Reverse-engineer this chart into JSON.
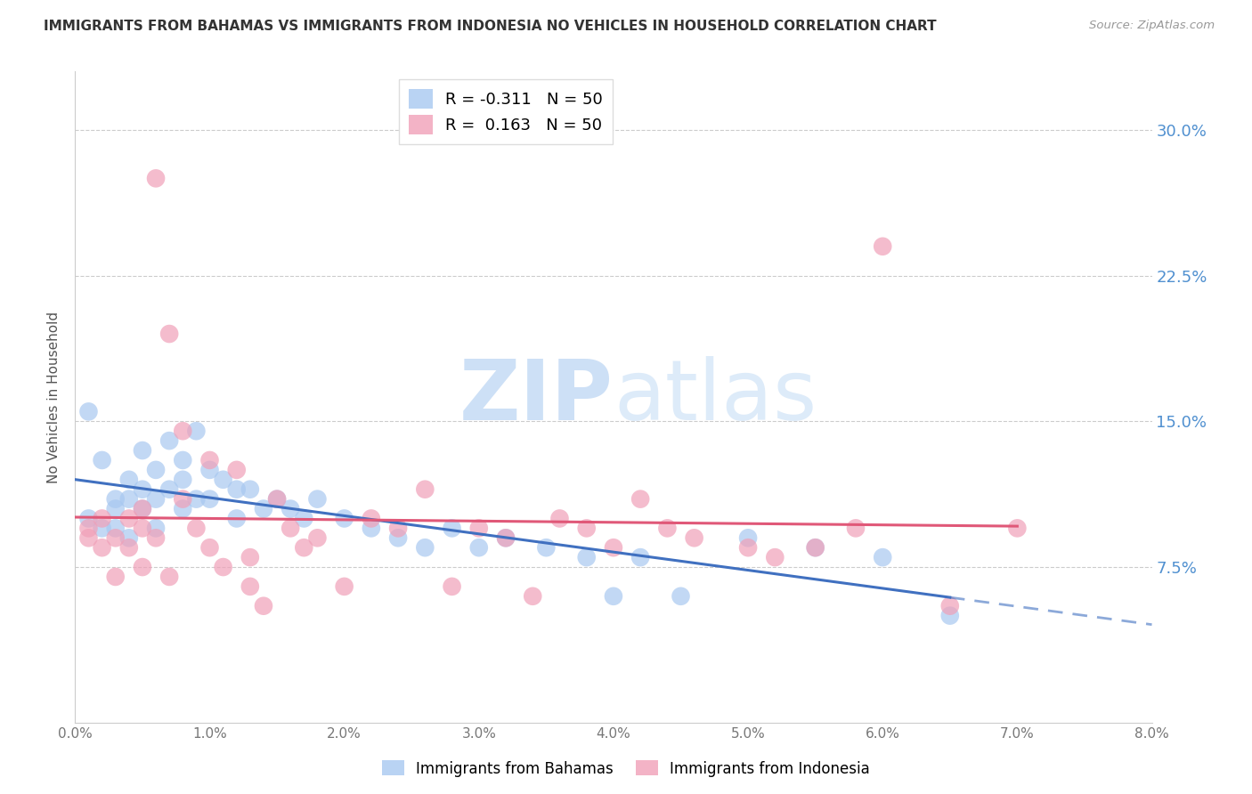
{
  "title": "IMMIGRANTS FROM BAHAMAS VS IMMIGRANTS FROM INDONESIA NO VEHICLES IN HOUSEHOLD CORRELATION CHART",
  "source": "Source: ZipAtlas.com",
  "ylabel": "No Vehicles in Household",
  "ytick_labels": [
    "7.5%",
    "15.0%",
    "22.5%",
    "30.0%"
  ],
  "ytick_values": [
    0.075,
    0.15,
    0.225,
    0.3
  ],
  "xlim": [
    0.0,
    0.08
  ],
  "ylim": [
    -0.005,
    0.33
  ],
  "legend_r_bahamas": "R = -0.311",
  "legend_n_bahamas": "N = 50",
  "legend_r_indonesia": "R =  0.163",
  "legend_n_indonesia": "N = 50",
  "color_bahamas": "#a8c8f0",
  "color_indonesia": "#f0a0b8",
  "line_color_bahamas": "#4070c0",
  "line_color_indonesia": "#e05878",
  "watermark_zip": "ZIP",
  "watermark_atlas": "atlas",
  "bahamas_x": [
    0.001,
    0.001,
    0.002,
    0.002,
    0.003,
    0.003,
    0.003,
    0.004,
    0.004,
    0.004,
    0.005,
    0.005,
    0.005,
    0.006,
    0.006,
    0.006,
    0.007,
    0.007,
    0.008,
    0.008,
    0.008,
    0.009,
    0.009,
    0.01,
    0.01,
    0.011,
    0.012,
    0.012,
    0.013,
    0.014,
    0.015,
    0.016,
    0.017,
    0.018,
    0.02,
    0.022,
    0.024,
    0.026,
    0.028,
    0.03,
    0.032,
    0.035,
    0.038,
    0.04,
    0.042,
    0.045,
    0.05,
    0.055,
    0.06,
    0.065
  ],
  "bahamas_y": [
    0.155,
    0.1,
    0.13,
    0.095,
    0.11,
    0.105,
    0.095,
    0.12,
    0.11,
    0.09,
    0.135,
    0.115,
    0.105,
    0.125,
    0.11,
    0.095,
    0.14,
    0.115,
    0.13,
    0.12,
    0.105,
    0.145,
    0.11,
    0.125,
    0.11,
    0.12,
    0.115,
    0.1,
    0.115,
    0.105,
    0.11,
    0.105,
    0.1,
    0.11,
    0.1,
    0.095,
    0.09,
    0.085,
    0.095,
    0.085,
    0.09,
    0.085,
    0.08,
    0.06,
    0.08,
    0.06,
    0.09,
    0.085,
    0.08,
    0.05
  ],
  "indonesia_x": [
    0.001,
    0.001,
    0.002,
    0.002,
    0.003,
    0.003,
    0.004,
    0.004,
    0.005,
    0.005,
    0.005,
    0.006,
    0.006,
    0.007,
    0.007,
    0.008,
    0.008,
    0.009,
    0.01,
    0.01,
    0.011,
    0.012,
    0.013,
    0.013,
    0.014,
    0.015,
    0.016,
    0.017,
    0.018,
    0.02,
    0.022,
    0.024,
    0.026,
    0.028,
    0.03,
    0.032,
    0.034,
    0.036,
    0.038,
    0.04,
    0.042,
    0.044,
    0.046,
    0.05,
    0.052,
    0.055,
    0.058,
    0.06,
    0.065,
    0.07
  ],
  "indonesia_y": [
    0.095,
    0.09,
    0.085,
    0.1,
    0.07,
    0.09,
    0.085,
    0.1,
    0.095,
    0.105,
    0.075,
    0.09,
    0.275,
    0.195,
    0.07,
    0.145,
    0.11,
    0.095,
    0.085,
    0.13,
    0.075,
    0.125,
    0.08,
    0.065,
    0.055,
    0.11,
    0.095,
    0.085,
    0.09,
    0.065,
    0.1,
    0.095,
    0.115,
    0.065,
    0.095,
    0.09,
    0.06,
    0.1,
    0.095,
    0.085,
    0.11,
    0.095,
    0.09,
    0.085,
    0.08,
    0.085,
    0.095,
    0.24,
    0.055,
    0.095
  ]
}
